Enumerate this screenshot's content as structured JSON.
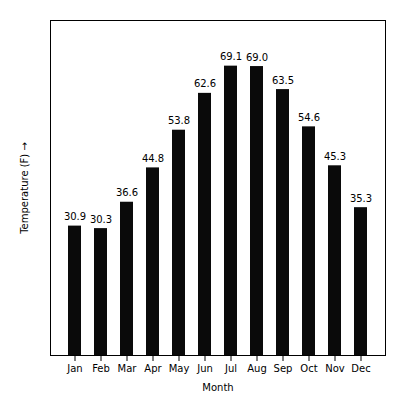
{
  "chart_data": {
    "type": "bar",
    "categories": [
      "Jan",
      "Feb",
      "Mar",
      "Apr",
      "May",
      "Jun",
      "Jul",
      "Aug",
      "Sep",
      "Oct",
      "Nov",
      "Dec"
    ],
    "values": [
      30.9,
      30.3,
      36.6,
      44.8,
      53.8,
      62.6,
      69.1,
      69.0,
      63.5,
      54.6,
      45.3,
      35.3
    ],
    "value_labels": [
      "30.9",
      "30.3",
      "36.6",
      "44.8",
      "53.8",
      "62.6",
      "69.1",
      "69.0",
      "63.5",
      "54.6",
      "45.3",
      "35.3"
    ],
    "color": "#0a0a0a",
    "xlabel": "Month",
    "ylabel": "Temperature (F)",
    "ylim": [
      0,
      80
    ],
    "yticks": [],
    "data_labels": true,
    "tick_labels": "x",
    "grid": false
  }
}
